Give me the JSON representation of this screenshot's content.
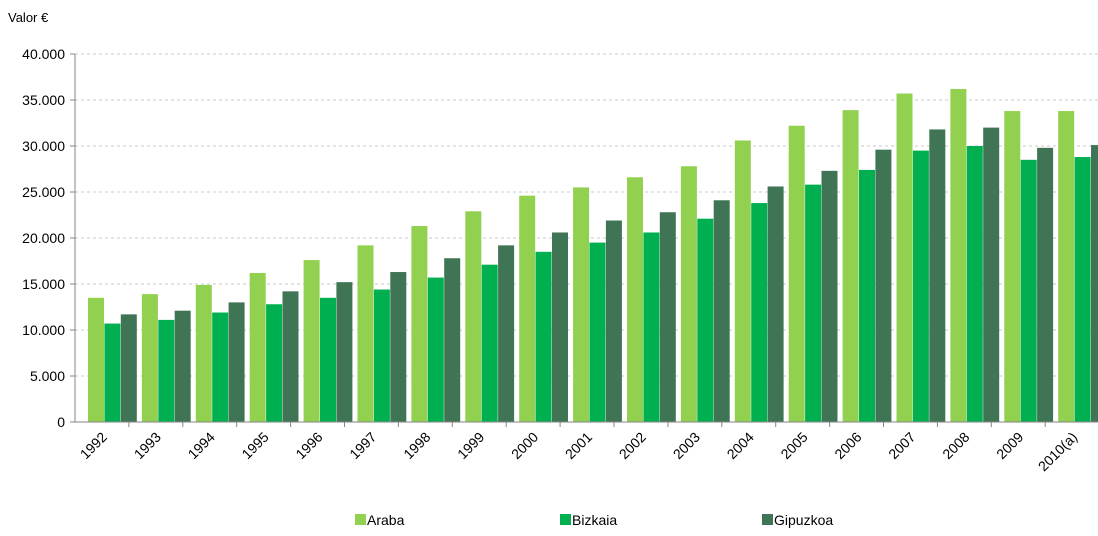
{
  "chart_data": {
    "type": "bar",
    "ylabel": "Valor €",
    "ylim": [
      0,
      40000
    ],
    "yticks": [
      0,
      5000,
      10000,
      15000,
      20000,
      25000,
      30000,
      35000,
      40000
    ],
    "ytick_labels": [
      "0",
      "5.000",
      "10.000",
      "15.000",
      "20.000",
      "25.000",
      "30.000",
      "35.000",
      "40.000"
    ],
    "categories": [
      "1992",
      "1993",
      "1994",
      "1995",
      "1996",
      "1997",
      "1998",
      "1999",
      "2000",
      "2001",
      "2002",
      "2003",
      "2004",
      "2005",
      "2006",
      "2007",
      "2008",
      "2009",
      "2010(a)"
    ],
    "series": [
      {
        "name": "Araba",
        "color": "#92d050",
        "values": [
          13500,
          13900,
          14900,
          16200,
          17600,
          19200,
          21300,
          22900,
          24600,
          25500,
          26600,
          27800,
          30600,
          32200,
          33900,
          35700,
          36200,
          33800,
          33800
        ]
      },
      {
        "name": "Bizkaia",
        "color": "#00b050",
        "values": [
          10700,
          11100,
          11900,
          12800,
          13500,
          14400,
          15700,
          17100,
          18500,
          19500,
          20600,
          22100,
          23800,
          25800,
          27400,
          29500,
          30000,
          28500,
          28800
        ]
      },
      {
        "name": "Gipuzkoa",
        "color": "#3f7454",
        "values": [
          11700,
          12100,
          13000,
          14200,
          15200,
          16300,
          17800,
          19200,
          20600,
          21900,
          22800,
          24100,
          25600,
          27300,
          29600,
          31800,
          32000,
          29800,
          30100
        ]
      }
    ],
    "grid": true,
    "legend_position": "bottom"
  }
}
